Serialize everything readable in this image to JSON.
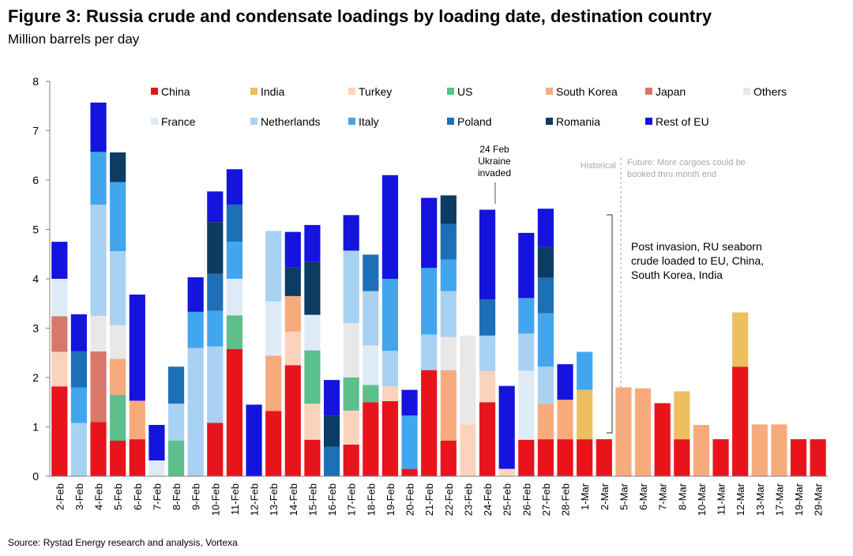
{
  "header": {
    "title": "Figure 3: Russia crude and condensate loadings by loading date, destination country",
    "subtitle": "Million barrels per day"
  },
  "footer": {
    "source": "Source: Rystad Energy research and analysis, Vortexa"
  },
  "annotations": {
    "invasion": [
      "24 Feb",
      "Ukraine",
      "invaded"
    ],
    "historical": "Historical",
    "future": [
      "Future: More cargoes could be",
      "booked thru month end"
    ],
    "post_invasion": [
      "Post invasion, RU seaborn",
      "crude loaded to EU, China,",
      "South Korea, India"
    ]
  },
  "colors": {
    "China": "#e8141b",
    "India": "#ecc05f",
    "Turkey": "#fbd3bd",
    "US": "#5cbf8c",
    "South Korea": "#f7ab7d",
    "Japan": "#d9776a",
    "Others": "#e8e8e8",
    "France": "#deebf7",
    "Netherlands": "#a9d1f2",
    "Italy": "#42a6ee",
    "Poland": "#1d6fb8",
    "Romania": "#0c3b63",
    "Rest of EU": "#1414de"
  },
  "chart_data": {
    "type": "bar",
    "stacked": true,
    "title": "Figure 3: Russia crude and condensate loadings by loading date, destination country",
    "subtitle": "Million barrels per day",
    "ylim": [
      0,
      8
    ],
    "yticks": [
      0,
      1,
      2,
      3,
      4,
      5,
      6,
      7,
      8
    ],
    "grid": false,
    "legend": "top",
    "categories": [
      "2-Feb",
      "3-Feb",
      "4-Feb",
      "5-Feb",
      "6-Feb",
      "7-Feb",
      "8-Feb",
      "9-Feb",
      "10-Feb",
      "11-Feb",
      "12-Feb",
      "13-Feb",
      "14-Feb",
      "15-Feb",
      "16-Feb",
      "17-Feb",
      "18-Feb",
      "19-Feb",
      "20-Feb",
      "21-Feb",
      "22-Feb",
      "23-Feb",
      "24-Feb",
      "25-Feb",
      "26-Feb",
      "27-Feb",
      "28-Feb",
      "1-Mar",
      "2-Mar",
      "5-Mar",
      "6-Mar",
      "7-Mar",
      "8-Mar",
      "10-Mar",
      "11-Mar",
      "12-Mar",
      "13-Mar",
      "17-Mar",
      "19-Mar",
      "29-Mar"
    ],
    "series": [
      {
        "name": "China",
        "values": [
          1.82,
          0,
          1.1,
          0.72,
          0.75,
          0,
          0,
          0,
          1.08,
          2.58,
          0,
          1.32,
          2.25,
          0.74,
          0,
          0.64,
          1.5,
          1.52,
          0.15,
          2.15,
          0.72,
          0,
          1.5,
          0,
          0.74,
          0.75,
          0.75,
          0.75,
          0.75,
          0,
          0,
          1.48,
          0.75,
          0,
          0.75,
          2.22,
          0,
          0,
          0.75,
          0.75
        ]
      },
      {
        "name": "India",
        "values": [
          0,
          0,
          0,
          0,
          0,
          0,
          0,
          0,
          0,
          0,
          0,
          0,
          0,
          0,
          0,
          0,
          0,
          0,
          0,
          0,
          0,
          0,
          0,
          0,
          0,
          0,
          0,
          1.0,
          0,
          0,
          0,
          0,
          0.97,
          0,
          0,
          1.1,
          0,
          0,
          0,
          0
        ]
      },
      {
        "name": "Turkey",
        "values": [
          0.7,
          0,
          0,
          0,
          0,
          0,
          0,
          0,
          0,
          0,
          0,
          0,
          0.68,
          0.73,
          0,
          0.69,
          0,
          0.3,
          0,
          0,
          0,
          1.05,
          0.63,
          0.15,
          0,
          0,
          0,
          0,
          0,
          0,
          0,
          0,
          0,
          0,
          0,
          0,
          0,
          0,
          0,
          0
        ]
      },
      {
        "name": "US",
        "values": [
          0,
          0,
          0,
          0.93,
          0,
          0,
          0.72,
          0,
          0,
          0.68,
          0,
          0,
          0,
          1.08,
          0,
          0.67,
          0.35,
          0,
          0,
          0,
          0,
          0,
          0,
          0,
          0,
          0,
          0,
          0,
          0,
          0,
          0,
          0,
          0,
          0,
          0,
          0,
          0,
          0,
          0,
          0
        ]
      },
      {
        "name": "South Korea",
        "values": [
          0,
          0,
          0,
          0.73,
          0.78,
          0,
          0,
          0,
          0,
          0,
          0,
          1.12,
          0.72,
          0,
          0,
          0,
          0,
          0,
          0,
          0,
          1.43,
          0,
          0,
          0,
          0,
          0.72,
          0.8,
          0,
          0,
          1.8,
          1.78,
          0,
          0,
          1.04,
          0,
          0,
          1.05,
          1.05,
          0,
          0
        ]
      },
      {
        "name": "Japan",
        "values": [
          0.72,
          0,
          1.43,
          0,
          0,
          0,
          0,
          0,
          0,
          0,
          0,
          0,
          0,
          0,
          0,
          0,
          0,
          0,
          0,
          0,
          0,
          0,
          0,
          0,
          0,
          0,
          0,
          0,
          0,
          0,
          0,
          0,
          0,
          0,
          0,
          0,
          0,
          0,
          0,
          0
        ]
      },
      {
        "name": "Others",
        "values": [
          0,
          0,
          0.72,
          0.68,
          0,
          0,
          0,
          0,
          0,
          0,
          0,
          0,
          0,
          0,
          0,
          1.1,
          0,
          0,
          0,
          0,
          0.67,
          1.8,
          0,
          0,
          0,
          0,
          0,
          0,
          0,
          0,
          0,
          0,
          0,
          0,
          0,
          0,
          0,
          0,
          0,
          0
        ]
      },
      {
        "name": "France",
        "values": [
          0.76,
          0,
          0,
          0,
          0,
          0.32,
          0,
          0,
          0,
          0.74,
          0,
          1.1,
          0,
          0.72,
          0,
          0,
          0.8,
          0,
          0,
          0,
          0,
          0,
          0,
          0,
          1.4,
          0,
          0,
          0,
          0,
          0,
          0,
          0,
          0,
          0,
          0,
          0,
          0,
          0,
          0,
          0
        ]
      },
      {
        "name": "Netherlands",
        "values": [
          0,
          1.08,
          2.25,
          1.5,
          0,
          0,
          0.75,
          2.6,
          1.55,
          0,
          0,
          1.43,
          0,
          0,
          0,
          1.47,
          1.1,
          0.72,
          0,
          0.72,
          0.93,
          0,
          0.72,
          0,
          0.75,
          0.75,
          0,
          0,
          0,
          0,
          0,
          0,
          0,
          0,
          0,
          0,
          0,
          0,
          0,
          0
        ]
      },
      {
        "name": "Italy",
        "values": [
          0,
          0.72,
          1.07,
          1.4,
          0,
          0,
          0,
          0.73,
          0.72,
          0.75,
          0,
          0,
          0,
          0,
          0,
          0,
          0,
          1.46,
          1.08,
          1.35,
          0.64,
          0,
          0,
          0,
          0.72,
          1.08,
          0,
          0.77,
          0,
          0,
          0,
          0,
          0,
          0,
          0,
          0,
          0,
          0,
          0,
          0
        ]
      },
      {
        "name": "Poland",
        "values": [
          0,
          0.73,
          0,
          0,
          0,
          0,
          0.75,
          0,
          0.75,
          0.75,
          0,
          0,
          0,
          0,
          0.6,
          0,
          0.74,
          0,
          0,
          0,
          0.72,
          0,
          0.73,
          0,
          0,
          0.72,
          0,
          0,
          0,
          0,
          0,
          0,
          0,
          0,
          0,
          0,
          0,
          0,
          0,
          0
        ]
      },
      {
        "name": "Romania",
        "values": [
          0,
          0,
          0,
          0.6,
          0,
          0,
          0,
          0,
          1.05,
          0,
          0,
          0,
          0.58,
          1.07,
          0.62,
          0,
          0,
          0,
          0,
          0,
          0.58,
          0,
          0,
          0,
          0,
          0.63,
          0,
          0,
          0,
          0,
          0,
          0,
          0,
          0,
          0,
          0,
          0,
          0,
          0,
          0
        ]
      },
      {
        "name": "Rest of EU",
        "values": [
          0.75,
          0.75,
          1.0,
          0,
          2.15,
          0.72,
          0,
          0.7,
          0.62,
          0.72,
          1.45,
          0,
          0.72,
          0.75,
          0.73,
          0.72,
          0,
          2.1,
          0.52,
          1.42,
          0,
          0,
          1.82,
          1.68,
          1.32,
          0.77,
          0.72,
          0,
          0,
          0,
          0,
          0,
          0,
          0,
          0,
          0,
          0,
          0,
          0,
          0
        ]
      }
    ]
  }
}
